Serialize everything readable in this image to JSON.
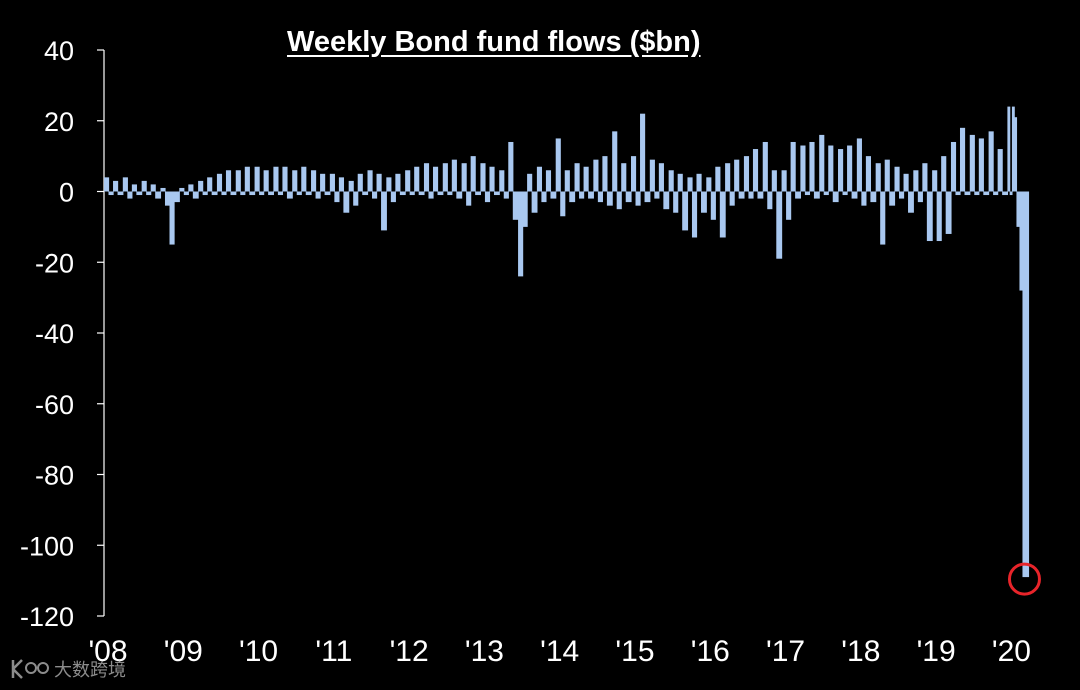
{
  "chart_data": {
    "type": "bar",
    "title": "Weekly Bond fund flows ($bn)",
    "ylim": [
      -120,
      40
    ],
    "y_ticks": [
      "40",
      "20",
      "0",
      "-20",
      "-40",
      "-60",
      "-80",
      "-100",
      "-120"
    ],
    "x_ticks": [
      "'08",
      "'09",
      "'10",
      "'11",
      "'12",
      "'13",
      "'14",
      "'15",
      "'16",
      "'17",
      "'18",
      "'19",
      "'20"
    ],
    "x_range": [
      2008.0,
      2020.3
    ],
    "bar_color": "#a9c8f0",
    "grid": false,
    "series": [
      {
        "points": [
          [
            2008.0,
            4
          ],
          [
            2008.06,
            -1
          ],
          [
            2008.12,
            3
          ],
          [
            2008.18,
            -1
          ],
          [
            2008.25,
            4
          ],
          [
            2008.31,
            -2
          ],
          [
            2008.37,
            2
          ],
          [
            2008.43,
            -1
          ],
          [
            2008.5,
            3
          ],
          [
            2008.56,
            -1
          ],
          [
            2008.62,
            2
          ],
          [
            2008.68,
            -2
          ],
          [
            2008.75,
            1
          ],
          [
            2008.81,
            -4
          ],
          [
            2008.87,
            -15
          ],
          [
            2008.93,
            -3
          ],
          [
            2009.0,
            1
          ],
          [
            2009.06,
            -1
          ],
          [
            2009.12,
            2
          ],
          [
            2009.18,
            -2
          ],
          [
            2009.25,
            3
          ],
          [
            2009.31,
            -1
          ],
          [
            2009.37,
            4
          ],
          [
            2009.43,
            -1
          ],
          [
            2009.5,
            5
          ],
          [
            2009.56,
            -1
          ],
          [
            2009.62,
            6
          ],
          [
            2009.68,
            -1
          ],
          [
            2009.75,
            6
          ],
          [
            2009.81,
            -1
          ],
          [
            2009.87,
            7
          ],
          [
            2009.93,
            -1
          ],
          [
            2010.0,
            7
          ],
          [
            2010.06,
            -1
          ],
          [
            2010.12,
            6
          ],
          [
            2010.18,
            -1
          ],
          [
            2010.25,
            7
          ],
          [
            2010.31,
            -1
          ],
          [
            2010.37,
            7
          ],
          [
            2010.43,
            -2
          ],
          [
            2010.5,
            6
          ],
          [
            2010.56,
            -1
          ],
          [
            2010.62,
            7
          ],
          [
            2010.68,
            -1
          ],
          [
            2010.75,
            6
          ],
          [
            2010.81,
            -2
          ],
          [
            2010.87,
            5
          ],
          [
            2010.93,
            -1
          ],
          [
            2011.0,
            5
          ],
          [
            2011.06,
            -3
          ],
          [
            2011.12,
            4
          ],
          [
            2011.18,
            -6
          ],
          [
            2011.25,
            3
          ],
          [
            2011.31,
            -4
          ],
          [
            2011.37,
            5
          ],
          [
            2011.43,
            -1
          ],
          [
            2011.5,
            6
          ],
          [
            2011.56,
            -2
          ],
          [
            2011.62,
            5
          ],
          [
            2011.68,
            -11
          ],
          [
            2011.75,
            4
          ],
          [
            2011.81,
            -3
          ],
          [
            2011.87,
            5
          ],
          [
            2011.93,
            -1
          ],
          [
            2012.0,
            6
          ],
          [
            2012.06,
            -1
          ],
          [
            2012.12,
            7
          ],
          [
            2012.18,
            -1
          ],
          [
            2012.25,
            8
          ],
          [
            2012.31,
            -2
          ],
          [
            2012.37,
            7
          ],
          [
            2012.43,
            -1
          ],
          [
            2012.5,
            8
          ],
          [
            2012.56,
            -1
          ],
          [
            2012.62,
            9
          ],
          [
            2012.68,
            -2
          ],
          [
            2012.75,
            8
          ],
          [
            2012.81,
            -4
          ],
          [
            2012.87,
            10
          ],
          [
            2012.93,
            -1
          ],
          [
            2013.0,
            8
          ],
          [
            2013.06,
            -3
          ],
          [
            2013.12,
            7
          ],
          [
            2013.18,
            -1
          ],
          [
            2013.25,
            6
          ],
          [
            2013.31,
            -2
          ],
          [
            2013.37,
            14
          ],
          [
            2013.43,
            -8
          ],
          [
            2013.5,
            -24
          ],
          [
            2013.56,
            -10
          ],
          [
            2013.62,
            5
          ],
          [
            2013.68,
            -6
          ],
          [
            2013.75,
            7
          ],
          [
            2013.81,
            -3
          ],
          [
            2013.87,
            6
          ],
          [
            2013.93,
            -2
          ],
          [
            2014.0,
            15
          ],
          [
            2014.06,
            -7
          ],
          [
            2014.12,
            6
          ],
          [
            2014.18,
            -3
          ],
          [
            2014.25,
            8
          ],
          [
            2014.31,
            -2
          ],
          [
            2014.37,
            7
          ],
          [
            2014.43,
            -2
          ],
          [
            2014.5,
            9
          ],
          [
            2014.56,
            -3
          ],
          [
            2014.62,
            10
          ],
          [
            2014.68,
            -4
          ],
          [
            2014.75,
            17
          ],
          [
            2014.81,
            -5
          ],
          [
            2014.87,
            8
          ],
          [
            2014.93,
            -3
          ],
          [
            2015.0,
            10
          ],
          [
            2015.06,
            -4
          ],
          [
            2015.12,
            22
          ],
          [
            2015.18,
            -3
          ],
          [
            2015.25,
            9
          ],
          [
            2015.31,
            -2
          ],
          [
            2015.37,
            8
          ],
          [
            2015.43,
            -5
          ],
          [
            2015.5,
            6
          ],
          [
            2015.56,
            -6
          ],
          [
            2015.62,
            5
          ],
          [
            2015.68,
            -11
          ],
          [
            2015.75,
            4
          ],
          [
            2015.81,
            -13
          ],
          [
            2015.87,
            5
          ],
          [
            2015.93,
            -6
          ],
          [
            2016.0,
            4
          ],
          [
            2016.06,
            -8
          ],
          [
            2016.12,
            7
          ],
          [
            2016.18,
            -13
          ],
          [
            2016.25,
            8
          ],
          [
            2016.31,
            -4
          ],
          [
            2016.37,
            9
          ],
          [
            2016.43,
            -2
          ],
          [
            2016.5,
            10
          ],
          [
            2016.56,
            -2
          ],
          [
            2016.62,
            12
          ],
          [
            2016.68,
            -2
          ],
          [
            2016.75,
            14
          ],
          [
            2016.81,
            -5
          ],
          [
            2016.87,
            6
          ],
          [
            2016.93,
            -19
          ],
          [
            2017.0,
            6
          ],
          [
            2017.06,
            -8
          ],
          [
            2017.12,
            14
          ],
          [
            2017.18,
            -2
          ],
          [
            2017.25,
            13
          ],
          [
            2017.31,
            -1
          ],
          [
            2017.37,
            14
          ],
          [
            2017.43,
            -2
          ],
          [
            2017.5,
            16
          ],
          [
            2017.56,
            -1
          ],
          [
            2017.62,
            13
          ],
          [
            2017.68,
            -3
          ],
          [
            2017.75,
            12
          ],
          [
            2017.81,
            -1
          ],
          [
            2017.87,
            13
          ],
          [
            2017.93,
            -2
          ],
          [
            2018.0,
            15
          ],
          [
            2018.06,
            -4
          ],
          [
            2018.12,
            10
          ],
          [
            2018.18,
            -3
          ],
          [
            2018.25,
            8
          ],
          [
            2018.31,
            -15
          ],
          [
            2018.37,
            9
          ],
          [
            2018.43,
            -4
          ],
          [
            2018.5,
            7
          ],
          [
            2018.56,
            -2
          ],
          [
            2018.62,
            5
          ],
          [
            2018.68,
            -6
          ],
          [
            2018.75,
            6
          ],
          [
            2018.81,
            -3
          ],
          [
            2018.87,
            8
          ],
          [
            2018.93,
            -14
          ],
          [
            2019.0,
            6
          ],
          [
            2019.06,
            -14
          ],
          [
            2019.12,
            10
          ],
          [
            2019.18,
            -12
          ],
          [
            2019.25,
            14
          ],
          [
            2019.31,
            -1
          ],
          [
            2019.37,
            18
          ],
          [
            2019.43,
            -1
          ],
          [
            2019.5,
            16
          ],
          [
            2019.56,
            -1
          ],
          [
            2019.62,
            15
          ],
          [
            2019.68,
            -1
          ],
          [
            2019.75,
            17
          ],
          [
            2019.81,
            -1
          ],
          [
            2019.87,
            12
          ],
          [
            2019.93,
            -1
          ],
          [
            2020.0,
            24
          ],
          [
            2020.03,
            -1
          ],
          [
            2020.06,
            24
          ],
          [
            2020.09,
            21
          ],
          [
            2020.12,
            -10
          ],
          [
            2020.16,
            -28
          ],
          [
            2020.2,
            -109
          ]
        ]
      }
    ],
    "highlight": {
      "x": 2020.2,
      "y": -109,
      "color": "#e8242a"
    }
  },
  "watermark": {
    "text": "大数跨境"
  }
}
